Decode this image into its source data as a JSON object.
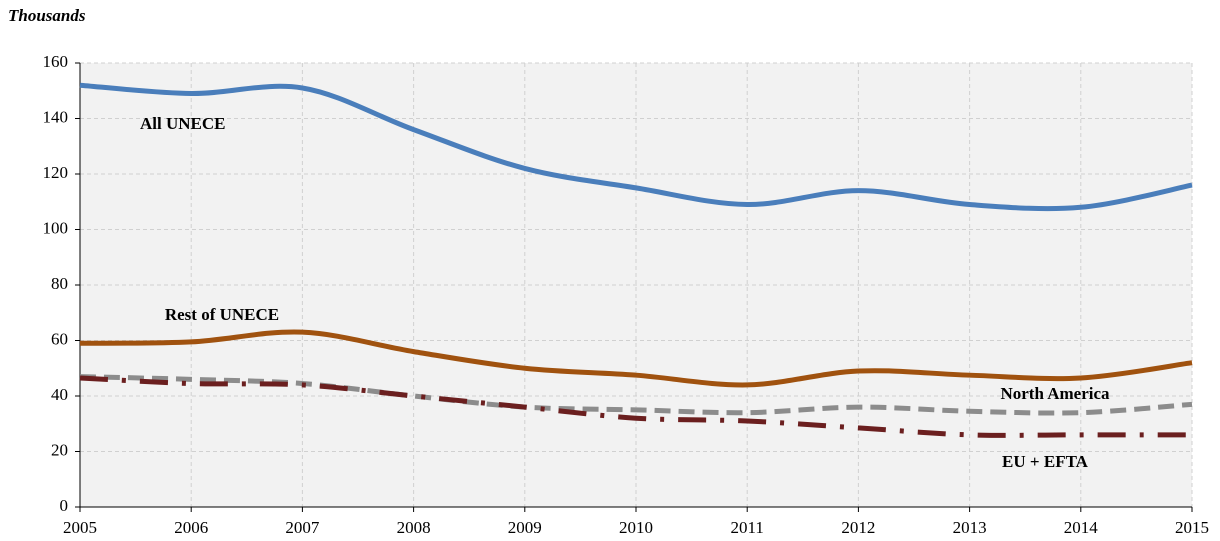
{
  "chart_data": {
    "type": "line",
    "y_axis_label": "Thousands",
    "x": [
      2005,
      2006,
      2007,
      2008,
      2009,
      2010,
      2011,
      2012,
      2013,
      2014,
      2015
    ],
    "xlim": [
      2005,
      2015
    ],
    "xticks": [
      2005,
      2006,
      2007,
      2008,
      2009,
      2010,
      2011,
      2012,
      2013,
      2014,
      2015
    ],
    "ylim": [
      0,
      160
    ],
    "yticks": [
      0,
      20,
      40,
      60,
      80,
      100,
      120,
      140,
      160
    ],
    "grid": true,
    "series": [
      {
        "name": "All UNECE",
        "color": "#4a7ebb",
        "style": "solid",
        "values": [
          152,
          149,
          151,
          136,
          122,
          115,
          109,
          114,
          109,
          108,
          116
        ]
      },
      {
        "name": "Rest of UNECE",
        "color": "#a0520f",
        "style": "solid",
        "values": [
          59,
          59.5,
          63,
          56,
          50,
          47.5,
          44,
          49,
          47.5,
          46.5,
          52
        ]
      },
      {
        "name": "North America",
        "color": "#8c8c8c",
        "style": "dashed",
        "values": [
          47,
          46,
          44.5,
          40,
          36,
          35,
          34,
          36,
          34.5,
          34,
          37
        ]
      },
      {
        "name": "EU + EFTA",
        "color": "#6b1f1f",
        "style": "dash-dot",
        "values": [
          46.5,
          44.5,
          44,
          40,
          36,
          32,
          31,
          28.5,
          26,
          26,
          26
        ]
      }
    ]
  }
}
